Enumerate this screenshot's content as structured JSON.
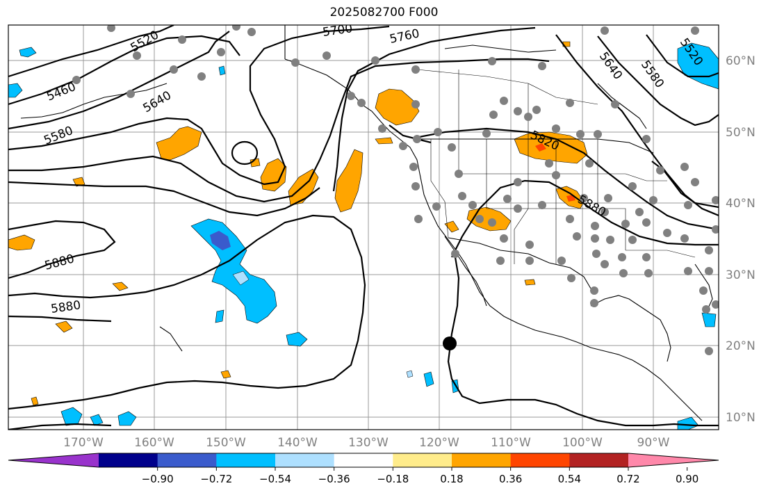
{
  "title": "2025082700 F000",
  "lon_labels": [
    "170°W",
    "160°W",
    "150°W",
    "140°W",
    "130°W",
    "120°W",
    "110°W",
    "100°W",
    "90°W"
  ],
  "lat_labels": [
    "60°N",
    "50°N",
    "40°N",
    "30°N",
    "20°N",
    "10°N"
  ],
  "contour_labels": [
    "5460",
    "5520",
    "5580",
    "5640",
    "5700",
    "5760",
    "5580",
    "5640",
    "5520",
    "5820",
    "5880",
    "5880",
    "5880"
  ],
  "colorbar": {
    "ticks": [
      "−0.90",
      "−0.72",
      "−0.54",
      "−0.36",
      "−0.18",
      "0.18",
      "0.36",
      "0.54",
      "0.72",
      "0.90"
    ],
    "colors": [
      "#9933cc",
      "#00008b",
      "#3a5bcc",
      "#00bfff",
      "#aee0ff",
      "#ffffff",
      "#ffec8b",
      "#ffa500",
      "#ff4500",
      "#b22222",
      "#ff88aa"
    ]
  },
  "colors": {
    "frame": "#000000",
    "grid": "#999999",
    "contour": "#000000",
    "station": "#808080",
    "axis_text": "#808080"
  }
}
